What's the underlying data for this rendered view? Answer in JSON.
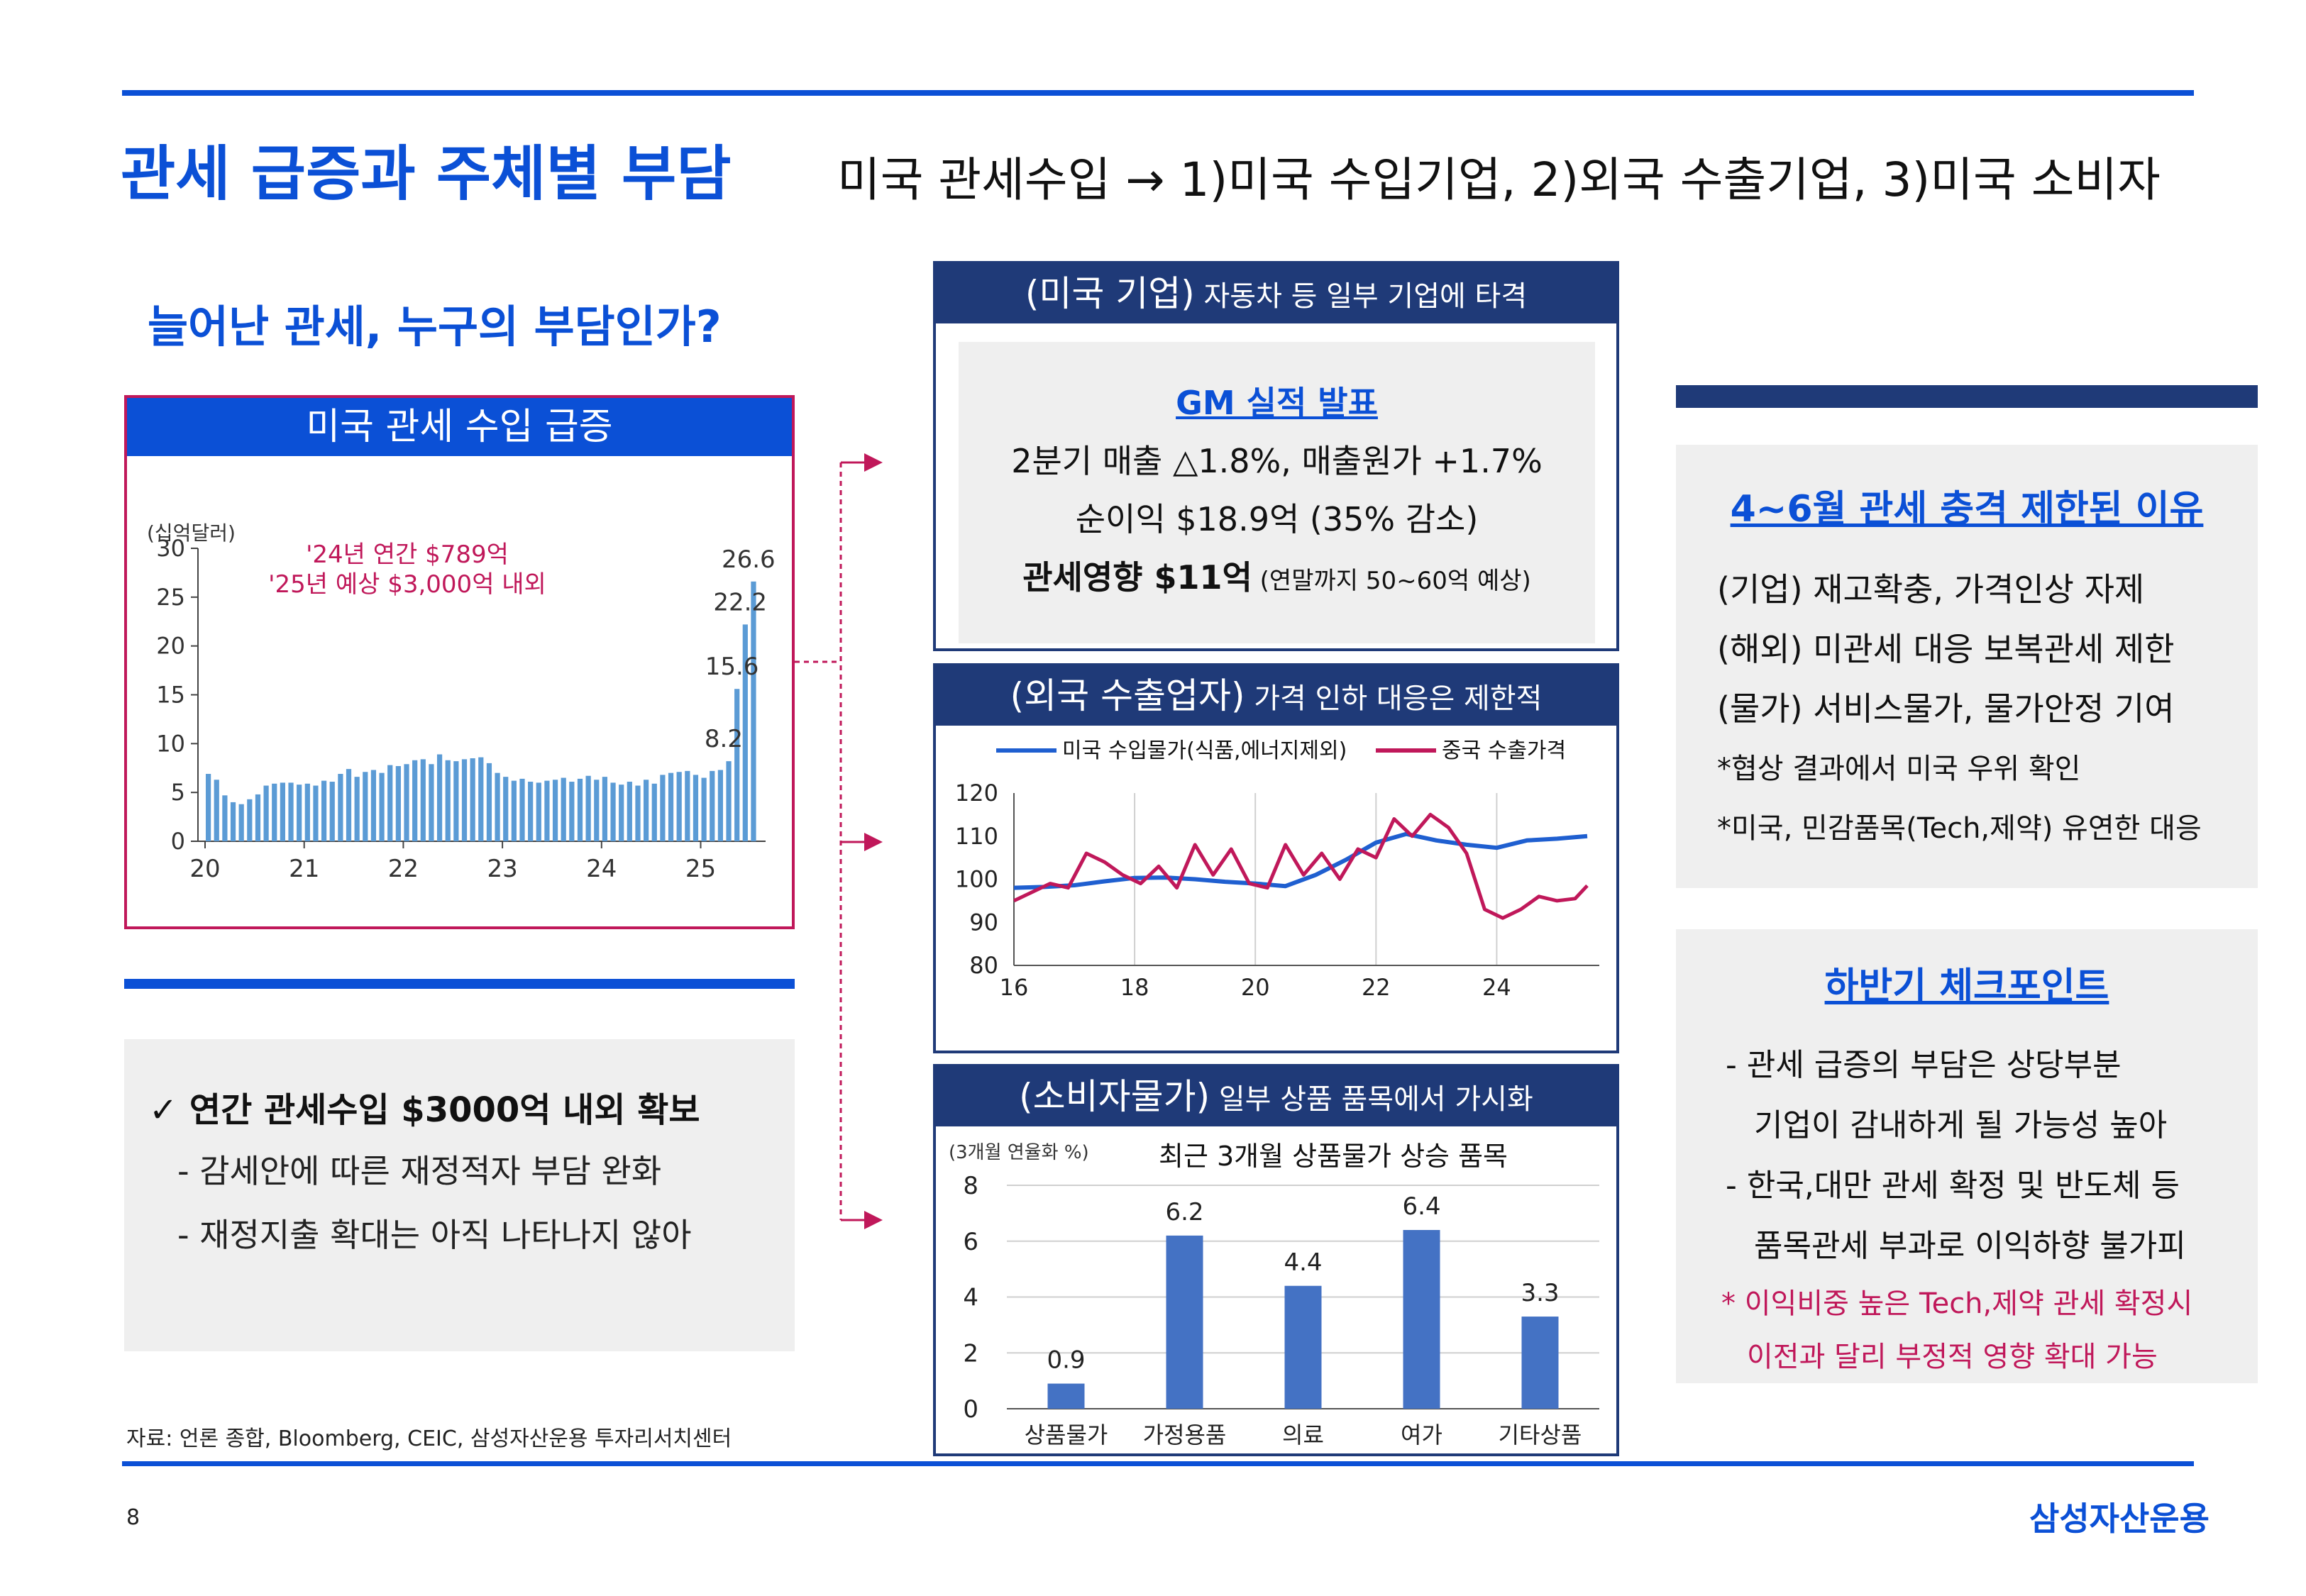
{
  "header": {
    "title": "관세 급증과 주체별 부담",
    "subtitle": "미국 관세수입 → 1)미국 수입기업, 2)외국 수출기업, 3)미국 소비자"
  },
  "question": "늘어난 관세, 누구의 부담인가?",
  "tariff_panel": {
    "title": "미국 관세 수입 급증",
    "unit": "(십억달러)",
    "annotation_1": "'24년 연간 $789억",
    "annotation_2": "'25년 예상 $3,000억 내외"
  },
  "summary_box": {
    "heading": "✓ 연간 관세수입 $3000억 내외 확보",
    "bullet_1": "- 감세안에 따른 재정적자 부담 완화",
    "bullet_2": "- 재정지출 확대는 아직 나타나지 않아"
  },
  "source": "자료: 언론 종합, Bloomberg, CEIC, 삼성자산운용 투자리서치센터",
  "page_number": "8",
  "brand": "삼성자산운용",
  "us_firms": {
    "header_paren": "(미국 기업)",
    "header_text": " 자동차 등 일부 기업에 타격",
    "gm_title": "GM 실적 발표",
    "line_1": "2분기 매출 △1.8%, 매출원가 +1.7%",
    "line_2": "순이익 $18.9억 (35% 감소)",
    "line_3_main": "관세영향 $11억",
    "line_3_note": " (연말까지 50~60억 예상)"
  },
  "exporters": {
    "header_paren": "(외국 수출업자)",
    "header_text": " 가격 인하 대응은 제한적"
  },
  "consumer": {
    "header_paren": "(소비자물가)",
    "header_text": " 일부 상품 품목에서 가시화",
    "chart_unit": "(3개월 연율화 %)"
  },
  "reasons": {
    "title": "4~6월 관세 충격 제한된 이유",
    "items": [
      "(기업) 재고확충, 가격인상 자제",
      "(해외) 미관세 대응 보복관세 제한",
      "(물가) 서비스물가, 물가안정 기여",
      "*협상 결과에서 미국 우위 확인",
      "*미국, 민감품목(Tech,제약) 유연한 대응"
    ]
  },
  "checkpoints": {
    "title": "하반기 체크포인트",
    "items": [
      "- 관세 급증의 부담은 상당부분",
      "기업이 감내하게 될 가능성 높아",
      "- 한국,대만 관세 확정 및 반도체 등",
      "품목관세 부과로 이익하향 불가피"
    ],
    "warn_1": "* 이익비중 높은 Tech,제약 관세 확정시",
    "warn_2": "이전과 달리 부정적 영향 확대 가능"
  },
  "colors": {
    "accent_blue": "#0b50d6",
    "navy": "#1f3a78",
    "magenta": "#c0185a",
    "bar_blue": "#5b9bd5",
    "bar_royal": "#4472c4",
    "line_blue": "#1f5fd0"
  },
  "chart_data": [
    {
      "type": "bar",
      "title": "미국 관세 수입 급증",
      "ylabel": "(십억달러)",
      "ylim": [
        0,
        30
      ],
      "yticks": [
        0,
        5,
        10,
        15,
        20,
        25,
        30
      ],
      "x_tick_labels": [
        "20",
        "21",
        "22",
        "23",
        "24",
        "25"
      ],
      "values": [
        6.9,
        6.3,
        4.7,
        4.0,
        3.8,
        4.3,
        4.8,
        5.7,
        5.9,
        6.0,
        6.0,
        5.8,
        5.9,
        5.7,
        6.2,
        6.1,
        6.9,
        7.4,
        6.6,
        7.1,
        7.3,
        7.0,
        7.8,
        7.7,
        7.9,
        8.3,
        8.4,
        7.9,
        8.9,
        8.3,
        8.2,
        8.4,
        8.5,
        8.6,
        8.0,
        7.0,
        6.6,
        6.2,
        6.4,
        6.1,
        6.0,
        6.2,
        6.3,
        6.5,
        6.1,
        6.4,
        6.7,
        6.3,
        6.6,
        6.0,
        5.8,
        6.1,
        5.7,
        6.3,
        5.9,
        6.8,
        7.0,
        7.1,
        7.2,
        6.8,
        6.5,
        7.2,
        7.3,
        8.2,
        15.6,
        22.2,
        26.6
      ],
      "data_labels": [
        {
          "value": "8.2",
          "index": 63
        },
        {
          "value": "15.6",
          "index": 64
        },
        {
          "value": "22.2",
          "index": 65
        },
        {
          "value": "26.6",
          "index": 66
        }
      ]
    },
    {
      "type": "line",
      "ylim": [
        80,
        120
      ],
      "yticks": [
        80,
        90,
        100,
        110,
        120
      ],
      "xlim": [
        2016,
        2025.7
      ],
      "x_tick_labels": [
        "16",
        "18",
        "20",
        "22",
        "24"
      ],
      "x_ticks": [
        2016,
        2018,
        2020,
        2022,
        2024
      ],
      "series": [
        {
          "name": "미국 수입물가(식품,에너지제외)",
          "x": [
            2016.0,
            2016.5,
            2017.0,
            2017.5,
            2018.0,
            2018.5,
            2019.0,
            2019.5,
            2020.0,
            2020.5,
            2021.0,
            2021.5,
            2022.0,
            2022.5,
            2023.0,
            2023.5,
            2024.0,
            2024.5,
            2025.0,
            2025.5
          ],
          "y": [
            98.0,
            98.2,
            98.6,
            99.5,
            100.3,
            100.4,
            100.0,
            99.4,
            99.0,
            98.4,
            101.0,
            104.5,
            108.5,
            110.5,
            109.0,
            108.0,
            107.3,
            109.0,
            109.4,
            110.0
          ]
        },
        {
          "name": "중국 수출가격",
          "x": [
            2016.0,
            2016.3,
            2016.6,
            2016.9,
            2017.2,
            2017.5,
            2017.8,
            2018.1,
            2018.4,
            2018.7,
            2019.0,
            2019.3,
            2019.6,
            2019.9,
            2020.2,
            2020.5,
            2020.8,
            2021.1,
            2021.4,
            2021.7,
            2022.0,
            2022.3,
            2022.6,
            2022.9,
            2023.2,
            2023.5,
            2023.8,
            2024.1,
            2024.4,
            2024.7,
            2025.0,
            2025.3,
            2025.5
          ],
          "y": [
            95.0,
            97.0,
            99.0,
            98.0,
            106.0,
            104.0,
            101.0,
            99.0,
            103.0,
            98.0,
            108.0,
            101.0,
            107.0,
            99.0,
            98.0,
            108.0,
            101.0,
            106.0,
            100.0,
            107.0,
            105.0,
            114.0,
            110.0,
            115.0,
            112.0,
            106.0,
            93.0,
            91.0,
            93.0,
            96.0,
            95.0,
            95.5,
            98.5
          ]
        }
      ]
    },
    {
      "type": "bar",
      "title": "최근 3개월 상품물가 상승 품목",
      "ylabel": "(3개월 연율화 %)",
      "ylim": [
        0,
        8
      ],
      "yticks": [
        0,
        2,
        4,
        6,
        8
      ],
      "categories": [
        "상품물가",
        "가정용품",
        "의료",
        "여가",
        "기타상품"
      ],
      "values": [
        0.9,
        6.2,
        4.4,
        6.4,
        3.3
      ]
    }
  ]
}
